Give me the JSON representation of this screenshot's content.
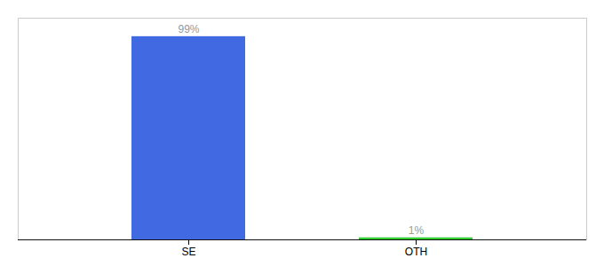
{
  "chart_data": {
    "type": "bar",
    "categories": [
      "SE",
      "OTH"
    ],
    "values": [
      99,
      1
    ],
    "value_labels": [
      "99%",
      "1%"
    ],
    "colors": [
      "#4169e1",
      "#32cd32"
    ],
    "ylim": [
      0,
      108
    ],
    "data_labels": true,
    "grid": false,
    "tick_labels": "x"
  }
}
